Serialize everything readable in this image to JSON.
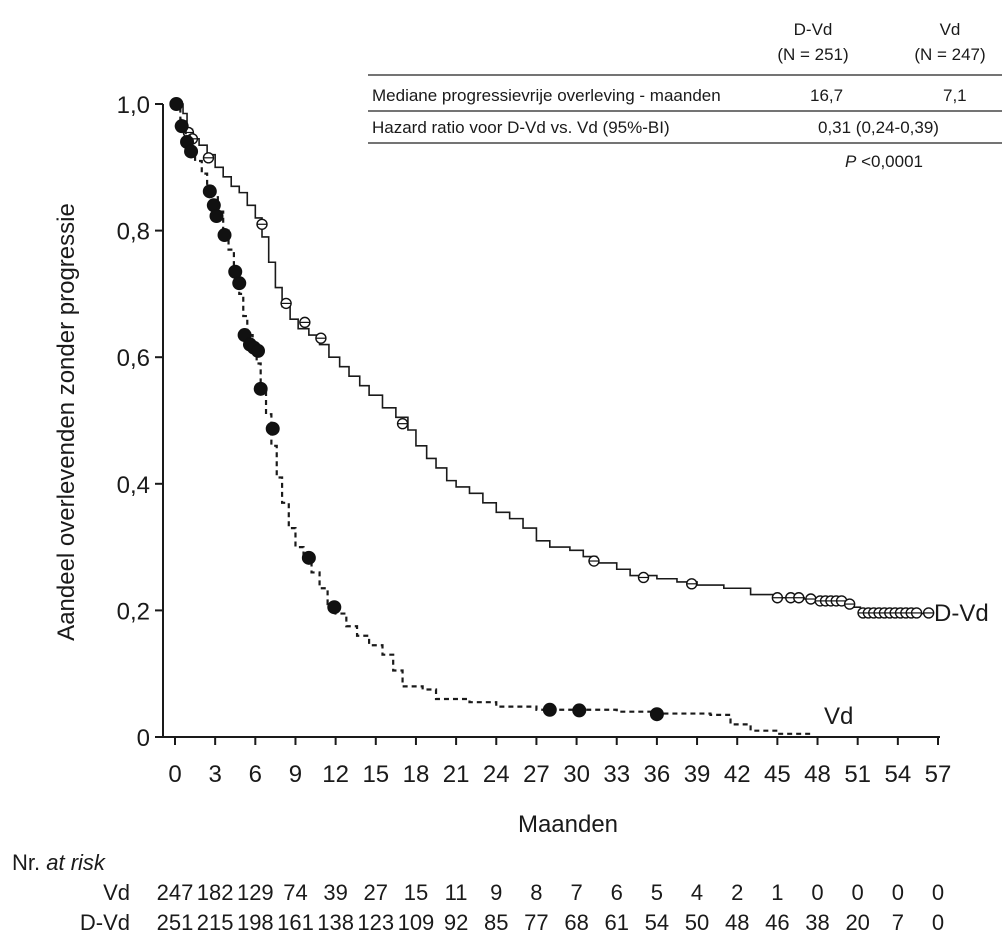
{
  "chart_data": {
    "type": "line",
    "xlabel": "Maanden",
    "ylabel": "Aandeel overlevenden zonder progressie",
    "x_ticks": [
      0,
      3,
      6,
      9,
      12,
      15,
      18,
      21,
      24,
      27,
      30,
      33,
      36,
      39,
      42,
      45,
      48,
      51,
      54,
      57
    ],
    "y_ticks": [
      "0",
      "0,2",
      "0,4",
      "0,6",
      "0,8",
      "1,0"
    ],
    "y_tick_values": [
      0,
      0.2,
      0.4,
      0.6,
      0.8,
      1.0
    ],
    "xlim": [
      0,
      57
    ],
    "ylim": [
      0,
      1.0
    ],
    "grid": false,
    "series": [
      {
        "name": "D-Vd",
        "style": "solid",
        "censor_marker": "open-circle",
        "steps": [
          [
            0,
            1.0
          ],
          [
            0.3,
            1.0
          ],
          [
            0.6,
            0.985
          ],
          [
            0.9,
            0.96
          ],
          [
            1.3,
            0.945
          ],
          [
            1.8,
            0.935
          ],
          [
            2.4,
            0.92
          ],
          [
            3.0,
            0.9
          ],
          [
            3.6,
            0.885
          ],
          [
            4.2,
            0.87
          ],
          [
            4.8,
            0.86
          ],
          [
            5.4,
            0.84
          ],
          [
            6.0,
            0.82
          ],
          [
            6.5,
            0.79
          ],
          [
            7.0,
            0.75
          ],
          [
            7.5,
            0.71
          ],
          [
            8.0,
            0.68
          ],
          [
            8.6,
            0.66
          ],
          [
            9.2,
            0.645
          ],
          [
            10.0,
            0.635
          ],
          [
            10.8,
            0.62
          ],
          [
            11.5,
            0.6
          ],
          [
            12.3,
            0.585
          ],
          [
            13.0,
            0.57
          ],
          [
            13.8,
            0.555
          ],
          [
            14.5,
            0.54
          ],
          [
            15.5,
            0.52
          ],
          [
            16.5,
            0.505
          ],
          [
            17.4,
            0.485
          ],
          [
            18.0,
            0.46
          ],
          [
            18.8,
            0.44
          ],
          [
            19.5,
            0.425
          ],
          [
            20.3,
            0.405
          ],
          [
            21.0,
            0.395
          ],
          [
            22.0,
            0.385
          ],
          [
            23.0,
            0.37
          ],
          [
            24.0,
            0.355
          ],
          [
            25.0,
            0.345
          ],
          [
            26.0,
            0.33
          ],
          [
            27.0,
            0.31
          ],
          [
            28.0,
            0.3
          ],
          [
            29.5,
            0.295
          ],
          [
            30.5,
            0.285
          ],
          [
            31.5,
            0.275
          ],
          [
            33.0,
            0.265
          ],
          [
            34.0,
            0.255
          ],
          [
            36.0,
            0.25
          ],
          [
            37.5,
            0.245
          ],
          [
            39.0,
            0.24
          ],
          [
            41.0,
            0.235
          ],
          [
            43.0,
            0.225
          ],
          [
            45.0,
            0.22
          ],
          [
            47.0,
            0.218
          ],
          [
            49.0,
            0.212
          ],
          [
            50.5,
            0.205
          ],
          [
            51.2,
            0.195
          ],
          [
            56.0,
            0.195
          ]
        ],
        "censored": [
          [
            1.0,
            0.955
          ],
          [
            1.3,
            0.945
          ],
          [
            2.5,
            0.915
          ],
          [
            6.5,
            0.81
          ],
          [
            8.3,
            0.685
          ],
          [
            9.7,
            0.655
          ],
          [
            10.9,
            0.63
          ],
          [
            17.0,
            0.495
          ],
          [
            31.3,
            0.278
          ],
          [
            35.0,
            0.252
          ],
          [
            38.6,
            0.242
          ],
          [
            45.0,
            0.22
          ],
          [
            46.0,
            0.22
          ],
          [
            46.6,
            0.22
          ],
          [
            47.5,
            0.218
          ],
          [
            48.2,
            0.215
          ],
          [
            48.6,
            0.215
          ],
          [
            49.0,
            0.215
          ],
          [
            49.4,
            0.215
          ],
          [
            49.8,
            0.215
          ],
          [
            50.4,
            0.21
          ],
          [
            51.4,
            0.196
          ],
          [
            51.8,
            0.196
          ],
          [
            52.2,
            0.196
          ],
          [
            52.6,
            0.196
          ],
          [
            53.0,
            0.196
          ],
          [
            53.4,
            0.196
          ],
          [
            53.8,
            0.196
          ],
          [
            54.2,
            0.196
          ],
          [
            54.6,
            0.196
          ],
          [
            55.0,
            0.196
          ],
          [
            55.4,
            0.196
          ],
          [
            56.3,
            0.196
          ]
        ]
      },
      {
        "name": "Vd",
        "style": "dashed",
        "censor_marker": "filled-circle",
        "steps": [
          [
            0,
            1.0
          ],
          [
            0.4,
            0.975
          ],
          [
            0.8,
            0.95
          ],
          [
            1.1,
            0.93
          ],
          [
            1.5,
            0.91
          ],
          [
            2.0,
            0.89
          ],
          [
            2.4,
            0.87
          ],
          [
            2.8,
            0.855
          ],
          [
            3.2,
            0.83
          ],
          [
            3.6,
            0.8
          ],
          [
            4.0,
            0.77
          ],
          [
            4.4,
            0.735
          ],
          [
            4.8,
            0.7
          ],
          [
            5.1,
            0.665
          ],
          [
            5.4,
            0.635
          ],
          [
            5.8,
            0.615
          ],
          [
            6.1,
            0.59
          ],
          [
            6.4,
            0.55
          ],
          [
            6.8,
            0.51
          ],
          [
            7.2,
            0.46
          ],
          [
            7.6,
            0.41
          ],
          [
            8.0,
            0.37
          ],
          [
            8.5,
            0.33
          ],
          [
            9.0,
            0.3
          ],
          [
            9.6,
            0.285
          ],
          [
            10.2,
            0.26
          ],
          [
            10.8,
            0.235
          ],
          [
            11.4,
            0.21
          ],
          [
            12.0,
            0.195
          ],
          [
            12.8,
            0.175
          ],
          [
            13.6,
            0.16
          ],
          [
            14.5,
            0.145
          ],
          [
            15.5,
            0.13
          ],
          [
            16.3,
            0.105
          ],
          [
            17.0,
            0.08
          ],
          [
            18.5,
            0.075
          ],
          [
            19.5,
            0.06
          ],
          [
            22.0,
            0.055
          ],
          [
            24.0,
            0.048
          ],
          [
            27.0,
            0.043
          ],
          [
            33.0,
            0.04
          ],
          [
            36.0,
            0.037
          ],
          [
            40.0,
            0.035
          ],
          [
            41.5,
            0.02
          ],
          [
            43.0,
            0.01
          ],
          [
            45.0,
            0.005
          ],
          [
            47.5,
            0.005
          ]
        ],
        "censored": [
          [
            0.1,
            1.0
          ],
          [
            0.5,
            0.965
          ],
          [
            0.9,
            0.94
          ],
          [
            1.2,
            0.925
          ],
          [
            2.6,
            0.862
          ],
          [
            2.9,
            0.84
          ],
          [
            3.1,
            0.823
          ],
          [
            3.7,
            0.793
          ],
          [
            4.5,
            0.735
          ],
          [
            4.8,
            0.717
          ],
          [
            5.2,
            0.635
          ],
          [
            5.6,
            0.62
          ],
          [
            5.9,
            0.615
          ],
          [
            6.2,
            0.61
          ],
          [
            6.4,
            0.55
          ],
          [
            7.3,
            0.487
          ],
          [
            10.0,
            0.283
          ],
          [
            11.9,
            0.205
          ],
          [
            28.0,
            0.043
          ],
          [
            30.2,
            0.042
          ],
          [
            36.0,
            0.036
          ]
        ]
      }
    ],
    "summary_table": {
      "columns": [
        "D-Vd\n(N = 251)",
        "Vd\n(N = 247)"
      ],
      "col1_line1": "D-Vd",
      "col1_line2": "(N = 251)",
      "col2_line1": "Vd",
      "col2_line2": "(N = 247)",
      "row1_label": "Mediane progressievrije overleving - maanden",
      "row1_dvd": "16,7",
      "row1_vd": "7,1",
      "row2_label": "Hazard ratio voor D-Vd vs. Vd (95%-BI)",
      "row2_value": "0,31 (0,24-0,39)",
      "p_prefix": "P",
      "p_value": "<0,0001"
    },
    "at_risk": {
      "title_prefix": "Nr.",
      "title_italic": "at risk",
      "rows": [
        {
          "label": "Vd",
          "values": [
            "247",
            "182",
            "129",
            "74",
            "39",
            "27",
            "15",
            "11",
            "9",
            "8",
            "7",
            "6",
            "5",
            "4",
            "2",
            "1",
            "0",
            "0",
            "0",
            "0"
          ]
        },
        {
          "label": "D-Vd",
          "values": [
            "251",
            "215",
            "198",
            "161",
            "138",
            "123",
            "109",
            "92",
            "85",
            "77",
            "68",
            "61",
            "54",
            "50",
            "48",
            "46",
            "38",
            "20",
            "7",
            "0"
          ]
        }
      ]
    }
  }
}
